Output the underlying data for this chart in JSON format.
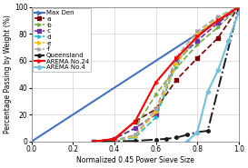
{
  "title": "",
  "xlabel": "Normalized 0.45 Power Sieve Size",
  "ylabel": "Percentage Passing by Weight (%)",
  "xlim": [
    0,
    1.0
  ],
  "ylim": [
    0,
    100
  ],
  "xticks": [
    0,
    0.2,
    0.4,
    0.6,
    0.8,
    1.0
  ],
  "yticks": [
    0,
    20,
    40,
    60,
    80,
    100
  ],
  "series": [
    {
      "label": "Max Den",
      "color": "#4472C4",
      "linewidth": 1.5,
      "linestyle": "-",
      "marker": ">",
      "markersize": 3,
      "x": [
        0,
        1.0
      ],
      "y": [
        0,
        100
      ]
    },
    {
      "label": "·a",
      "color": "#7B0000",
      "linewidth": 1.2,
      "linestyle": "--",
      "marker": "s",
      "markersize": 2.5,
      "x": [
        0.3,
        0.4,
        0.5,
        0.6,
        0.7,
        0.8,
        0.9,
        1.0
      ],
      "y": [
        0,
        2,
        15,
        24,
        46,
        62,
        77,
        100
      ]
    },
    {
      "label": "·b",
      "color": "#70AD47",
      "linewidth": 1.2,
      "linestyle": "--",
      "marker": ">",
      "markersize": 2.5,
      "x": [
        0.3,
        0.4,
        0.5,
        0.6,
        0.7,
        0.8,
        0.9,
        1.0
      ],
      "y": [
        0,
        2,
        10,
        35,
        55,
        72,
        85,
        100
      ]
    },
    {
      "label": "·c",
      "color": "#7030A0",
      "linewidth": 1.2,
      "linestyle": "--",
      "marker": "s",
      "markersize": 2.5,
      "x": [
        0.3,
        0.4,
        0.5,
        0.6,
        0.7,
        0.8,
        0.9,
        1.0
      ],
      "y": [
        0,
        2,
        10,
        20,
        60,
        75,
        88,
        100
      ]
    },
    {
      "label": "·d",
      "color": "#17BECF",
      "linewidth": 1.2,
      "linestyle": "--",
      "marker": ">",
      "markersize": 2.5,
      "x": [
        0.35,
        0.4,
        0.5,
        0.6,
        0.7,
        0.8,
        0.9,
        1.0
      ],
      "y": [
        0,
        1,
        3,
        18,
        58,
        78,
        90,
        100
      ]
    },
    {
      "label": "·e",
      "color": "#FFC000",
      "linewidth": 1.2,
      "linestyle": "--",
      "marker": ">",
      "markersize": 2.5,
      "x": [
        0.35,
        0.4,
        0.5,
        0.6,
        0.7,
        0.8,
        0.9,
        1.0
      ],
      "y": [
        0,
        1,
        4,
        22,
        58,
        80,
        92,
        100
      ]
    },
    {
      "label": "·f",
      "color": "#A5A5A5",
      "linewidth": 1.2,
      "linestyle": "--",
      "marker": ">",
      "markersize": 2.5,
      "x": [
        0.35,
        0.4,
        0.5,
        0.6,
        0.7,
        0.8,
        0.9,
        1.0
      ],
      "y": [
        0,
        1,
        5,
        24,
        63,
        82,
        93,
        100
      ]
    },
    {
      "label": "Queensland",
      "color": "#1A1A1A",
      "linewidth": 1.4,
      "linestyle": "-.",
      "marker": "o",
      "markersize": 2.5,
      "x": [
        0.35,
        0.5,
        0.6,
        0.65,
        0.7,
        0.75,
        0.8,
        0.85,
        1.0
      ],
      "y": [
        0,
        0.5,
        1.5,
        2,
        3,
        5,
        7,
        8,
        100
      ]
    },
    {
      "label": "AREMA No.24",
      "color": "#FF0000",
      "linewidth": 1.5,
      "linestyle": "-",
      "marker": ">",
      "markersize": 2.5,
      "x": [
        0.3,
        0.4,
        0.5,
        0.6,
        0.7,
        0.8,
        0.9,
        1.0
      ],
      "y": [
        0,
        2,
        15,
        44,
        62,
        78,
        90,
        100
      ]
    },
    {
      "label": "AREMA No.4",
      "color": "#74C0E0",
      "linewidth": 1.5,
      "linestyle": "-",
      "marker": "D",
      "markersize": 2.5,
      "x": [
        0.75,
        0.8,
        0.85,
        0.9,
        0.95,
        1.0
      ],
      "y": [
        0,
        7,
        37,
        53,
        75,
        96
      ]
    }
  ],
  "legend_fontsize": 5.0,
  "tick_fontsize": 5.5,
  "label_fontsize": 5.5,
  "axis_label_fontsize": 5.5,
  "bg_color": "#FFFFFF",
  "grid_color": "#C8C8C8"
}
